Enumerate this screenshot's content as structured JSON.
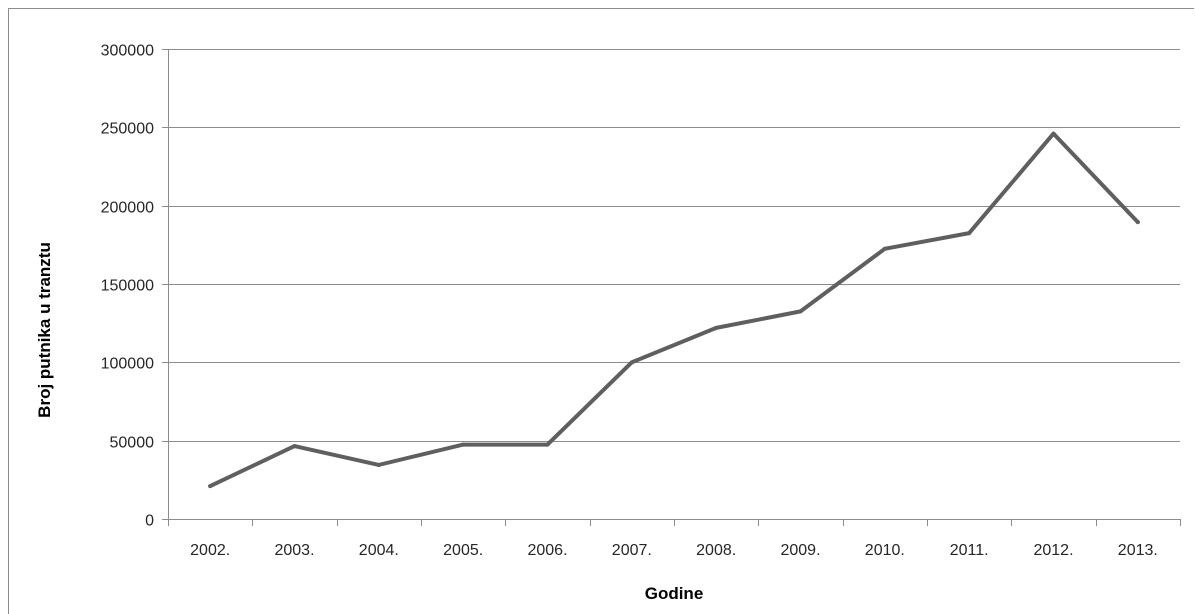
{
  "chart_data": {
    "type": "line",
    "title": "",
    "xlabel": "Godine",
    "ylabel": "Broj putnika u tranztu",
    "categories": [
      "2002.",
      "2003.",
      "2004.",
      "2005.",
      "2006.",
      "2007.",
      "2008.",
      "2009.",
      "2010.",
      "2011.",
      "2012.",
      "2013."
    ],
    "series": [
      {
        "values": [
          21000,
          46500,
          34500,
          47500,
          47500,
          100000,
          122000,
          132500,
          172500,
          182500,
          246000,
          189500
        ]
      }
    ],
    "ylim": [
      0,
      300000
    ],
    "yticks": [
      0,
      50000,
      100000,
      150000,
      200000,
      250000,
      300000
    ],
    "ytick_labels": [
      "0",
      "50000",
      "100000",
      "150000",
      "200000",
      "250000",
      "300000"
    ],
    "grid": true,
    "legend": "none",
    "line_color": "#5f5f5f"
  }
}
